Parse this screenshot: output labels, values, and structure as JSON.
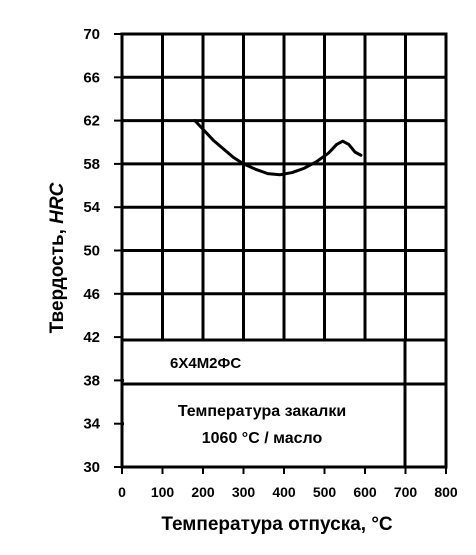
{
  "chart_data": {
    "type": "line",
    "title": "",
    "xlabel": "Температура отпуска, °C",
    "ylabel_prefix": "Твердость, ",
    "ylabel_unit": "HRC",
    "xlim": [
      0,
      800
    ],
    "ylim": [
      30,
      70
    ],
    "x_ticks": [
      "0",
      "100",
      "200",
      "300",
      "400",
      "500",
      "600",
      "700",
      "800"
    ],
    "y_ticks": [
      "30",
      "34",
      "38",
      "42",
      "46",
      "50",
      "54",
      "58",
      "62",
      "66",
      "70"
    ],
    "grid": true,
    "series": [
      {
        "x": [
          180,
          200,
          225,
          250,
          275,
          300,
          330,
          360,
          390,
          420,
          450,
          480,
          510,
          530,
          545,
          560,
          575,
          590
        ],
        "y": [
          62,
          61.2,
          60.2,
          59.4,
          58.6,
          58,
          57.5,
          57.1,
          57,
          57.2,
          57.6,
          58.2,
          59,
          59.8,
          60.1,
          59.8,
          59.1,
          58.8
        ]
      }
    ],
    "annotations": {
      "steel_grade": "6Х4М2ФС",
      "quench_line1": "Температура закалки",
      "quench_line2": "1060 °С / масло"
    }
  }
}
